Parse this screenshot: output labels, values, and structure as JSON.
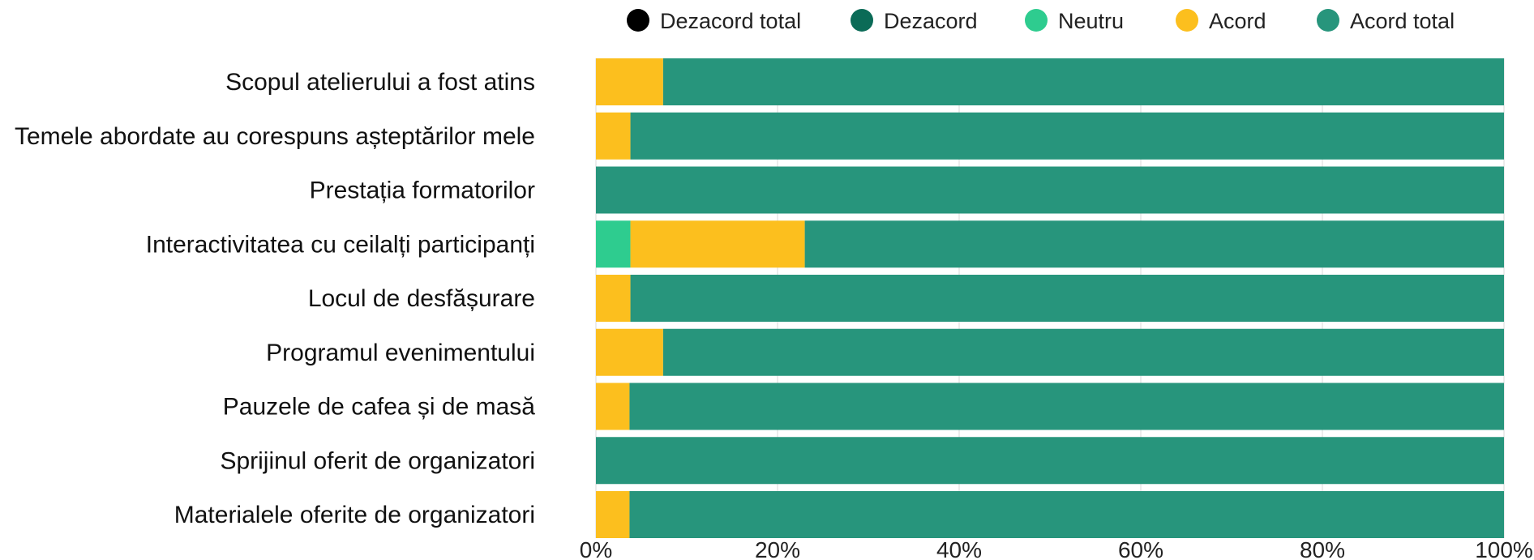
{
  "chart_data": {
    "type": "bar",
    "orientation": "horizontal",
    "stacked": true,
    "percent": true,
    "categories": [
      "Scopul atelierului a fost atins",
      "Temele abordate au corespuns așteptărilor mele",
      "Prestația formatorilor",
      "Interactivitatea cu ceilalți participanți",
      "Locul de desfășurare",
      "Programul evenimentului",
      "Pauzele de cafea și de masă",
      "Sprijinul oferit de organizatori",
      "Materialele oferite de organizatori"
    ],
    "series": [
      {
        "name": "Dezacord total",
        "color": "#000000",
        "values": [
          0,
          0,
          0,
          0,
          0,
          0,
          0,
          0,
          0
        ]
      },
      {
        "name": "Dezacord",
        "color": "#0b6b57",
        "values": [
          0,
          0,
          0,
          0,
          0,
          0,
          0,
          0,
          0
        ]
      },
      {
        "name": "Neutru",
        "color": "#2ecc8f",
        "values": [
          0,
          0,
          0,
          3.8,
          0,
          0,
          0,
          0,
          0
        ]
      },
      {
        "name": "Acord",
        "color": "#fcbf1e",
        "values": [
          7.4,
          3.8,
          0,
          19.2,
          3.8,
          7.4,
          3.7,
          0,
          3.7
        ]
      },
      {
        "name": "Acord total",
        "color": "#27957c",
        "values": [
          92.6,
          96.2,
          100,
          77.0,
          96.2,
          92.6,
          96.3,
          100,
          96.3
        ]
      }
    ],
    "xlim": [
      0,
      100
    ],
    "x_ticks": [
      "0%",
      "20%",
      "40%",
      "60%",
      "80%",
      "100%"
    ],
    "grid": true,
    "legend_position": "top"
  }
}
